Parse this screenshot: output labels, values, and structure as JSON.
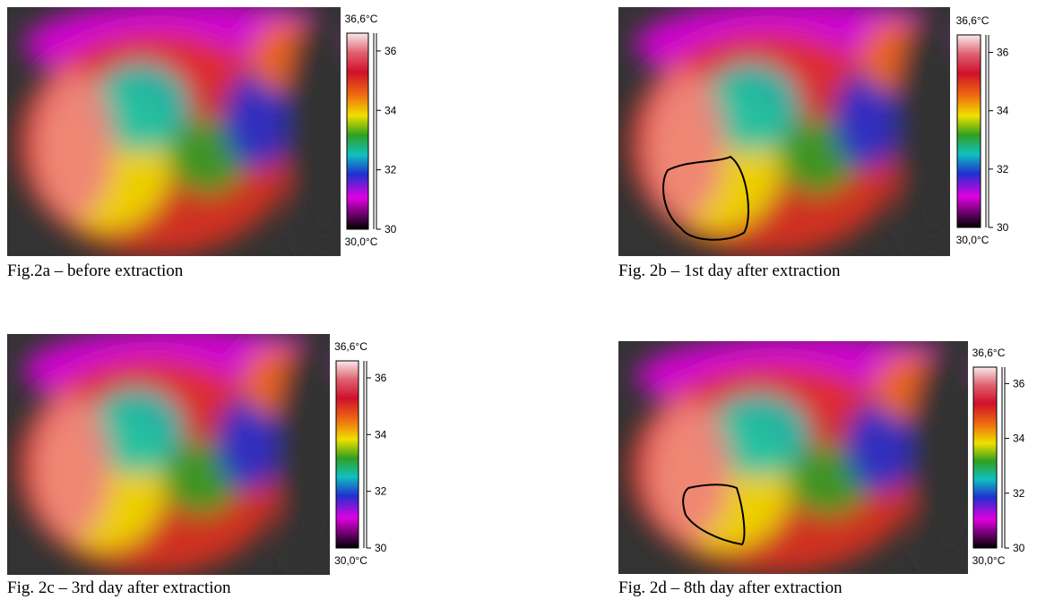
{
  "figures": [
    {
      "caption": "Fig.2a – before extraction",
      "colorbar": {
        "max": {
          "value": 36.6,
          "label": "36,6°C"
        },
        "min": {
          "value": 30,
          "label": "30,0°C"
        },
        "ticks": [
          36,
          34,
          32,
          30
        ]
      }
    },
    {
      "caption": "Fig. 2b – 1st day after extraction",
      "colorbar": {
        "max": {
          "value": 36.6,
          "label": "36,6°C"
        },
        "min": {
          "value": 30,
          "label": "30,0°C"
        },
        "ticks": [
          36,
          34,
          32,
          30
        ]
      }
    },
    {
      "caption": "Fig. 2c – 3rd day after extraction",
      "colorbar": {
        "max": {
          "value": 36.6,
          "label": "36,6°C"
        },
        "min": {
          "value": 30,
          "label": "30,0°C"
        },
        "ticks": [
          36,
          34,
          32,
          30
        ]
      }
    },
    {
      "caption": "Fig. 2d – 8th day after extraction",
      "colorbar": {
        "max": {
          "value": 36.6,
          "label": "36,6°C"
        },
        "min": {
          "value": 30,
          "label": "30,0°C"
        },
        "ticks": [
          36,
          34,
          32,
          30
        ]
      }
    }
  ]
}
